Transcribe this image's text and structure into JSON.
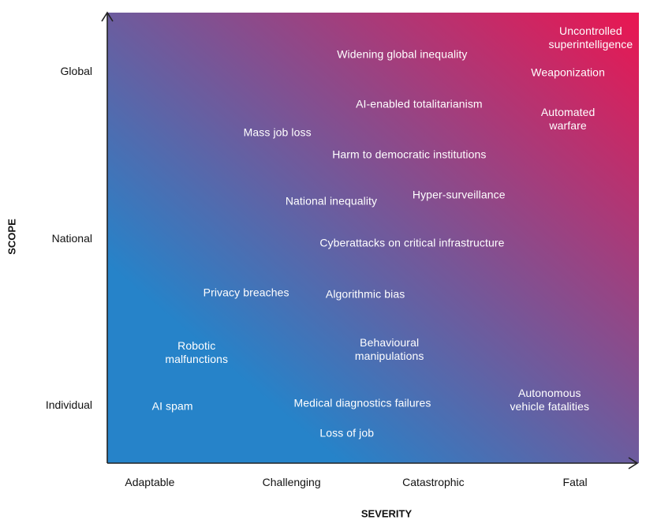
{
  "chart_data": {
    "type": "scatter",
    "xlabel": "SEVERITY",
    "ylabel": "SCOPE",
    "x_categories": [
      "Adaptable",
      "Challenging",
      "Catastrophic",
      "Fatal"
    ],
    "y_categories": [
      "Individual",
      "National",
      "Global"
    ],
    "xlim": [
      0.7,
      4.45
    ],
    "ylim": [
      0.65,
      3.35
    ],
    "background_gradient": {
      "low_color": "#2683c9",
      "high_color": "#ea1651"
    },
    "points": [
      {
        "label": "Uncontrolled superintelligence",
        "x": 4.11,
        "y": 3.2
      },
      {
        "label": "Widening global inequality",
        "x": 2.78,
        "y": 3.1
      },
      {
        "label": "Weaponization",
        "x": 3.95,
        "y": 2.99
      },
      {
        "label": "AI-enabled totalitarianism",
        "x": 2.9,
        "y": 2.8
      },
      {
        "label": "Automated warfare",
        "x": 3.95,
        "y": 2.71
      },
      {
        "label": "Mass job loss",
        "x": 1.9,
        "y": 2.63
      },
      {
        "label": "Harm to democratic institutions",
        "x": 2.83,
        "y": 2.5
      },
      {
        "label": "Hyper-surveillance",
        "x": 3.18,
        "y": 2.26
      },
      {
        "label": "National inequality",
        "x": 2.28,
        "y": 2.22
      },
      {
        "label": "Cyberattacks on critical infrastructure",
        "x": 2.85,
        "y": 1.97
      },
      {
        "label": "Privacy breaches",
        "x": 1.68,
        "y": 1.67
      },
      {
        "label": "Algorithmic bias",
        "x": 2.52,
        "y": 1.66
      },
      {
        "label": "Robotic malfunctions",
        "x": 1.33,
        "y": 1.31
      },
      {
        "label": "Behavioural manipulations",
        "x": 2.69,
        "y": 1.33
      },
      {
        "label": "AI spam",
        "x": 1.16,
        "y": 0.99
      },
      {
        "label": "Medical diagnostics failures",
        "x": 2.5,
        "y": 1.01
      },
      {
        "label": "Autonomous vehicle fatalities",
        "x": 3.82,
        "y": 1.03
      },
      {
        "label": "Loss of job",
        "x": 2.39,
        "y": 0.83
      }
    ]
  }
}
